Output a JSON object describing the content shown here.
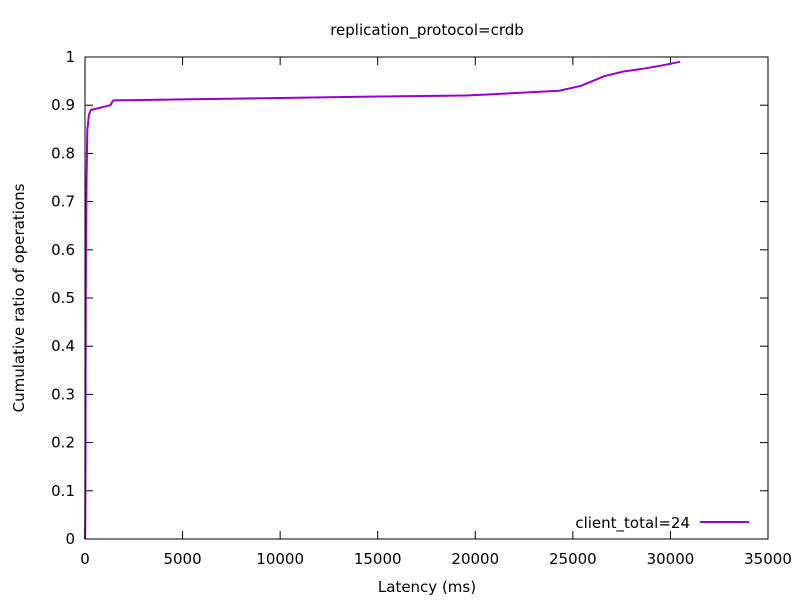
{
  "chart_data": {
    "type": "line",
    "title": "replication_protocol=crdb",
    "xlabel": "Latency (ms)",
    "ylabel": "Cumulative ratio of operations",
    "xlim": [
      0,
      35000
    ],
    "ylim": [
      0,
      1
    ],
    "x_ticks": [
      0,
      5000,
      10000,
      15000,
      20000,
      25000,
      30000,
      35000
    ],
    "y_ticks": [
      0,
      0.1,
      0.2,
      0.3,
      0.4,
      0.5,
      0.6,
      0.7,
      0.8,
      0.9,
      1
    ],
    "grid": false,
    "legend_position": "bottom-right",
    "series": [
      {
        "name": "client_total=24",
        "color": "#9400d3",
        "x": [
          0,
          10,
          20,
          30,
          40,
          50,
          60,
          70,
          80,
          100,
          120,
          150,
          200,
          300,
          1300,
          1450,
          5000,
          10000,
          15000,
          19500,
          20500,
          24300,
          25400,
          26600,
          27600,
          28500,
          29500,
          30500
        ],
        "y": [
          0.0,
          0.02,
          0.1,
          0.3,
          0.5,
          0.6,
          0.65,
          0.7,
          0.75,
          0.8,
          0.85,
          0.86,
          0.88,
          0.89,
          0.9,
          0.91,
          0.912,
          0.915,
          0.918,
          0.92,
          0.922,
          0.93,
          0.94,
          0.96,
          0.97,
          0.975,
          0.982,
          0.99
        ]
      }
    ]
  }
}
